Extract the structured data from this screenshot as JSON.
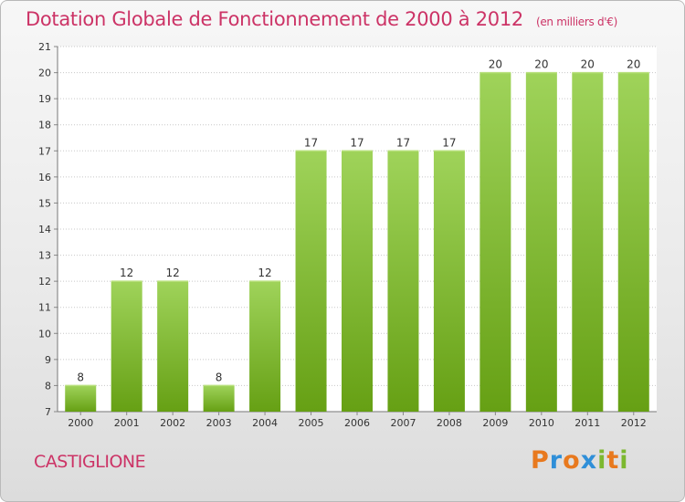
{
  "header": {
    "title": "Dotation Globale de Fonctionnement de 2000 à 2012",
    "subtitle": "(en milliers d'€)"
  },
  "footer": {
    "place": "CASTIGLIONE",
    "brand": "Proxiti"
  },
  "colors": {
    "title": "#cc3366",
    "bar_top": "#9fd35a",
    "bar_bottom": "#66a014",
    "brand_letters": [
      "#e8791e",
      "#2f8fd8",
      "#e8791e",
      "#2f8fd8",
      "#7cb82f",
      "#e8791e",
      "#7cb82f"
    ]
  },
  "chart_data": {
    "type": "bar",
    "categories": [
      "2000",
      "2001",
      "2002",
      "2003",
      "2004",
      "2005",
      "2006",
      "2007",
      "2008",
      "2009",
      "2010",
      "2011",
      "2012"
    ],
    "values": [
      8,
      12,
      12,
      8,
      12,
      17,
      17,
      17,
      17,
      20,
      20,
      20,
      20
    ],
    "value_labels": [
      "8",
      "12",
      "12",
      "8",
      "12",
      "17",
      "17",
      "17",
      "17",
      "20",
      "20",
      "20",
      "20"
    ],
    "y_ticks": [
      "7",
      "8",
      "9",
      "10",
      "11",
      "12",
      "13",
      "14",
      "15",
      "16",
      "17",
      "18",
      "19",
      "20",
      "21"
    ],
    "ylim": [
      7,
      21
    ],
    "grid": true,
    "legend": "none"
  }
}
